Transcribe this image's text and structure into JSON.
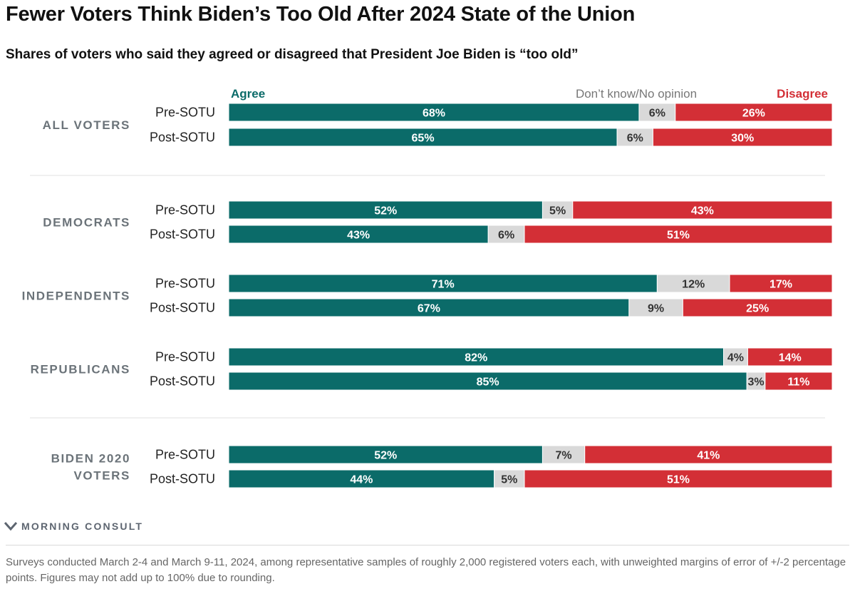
{
  "header": {
    "title": "Fewer Voters Think Biden’s Too Old After 2024 State of the Union",
    "subtitle": "Shares of voters who said they agreed or disagreed that President Joe Biden is “too old”"
  },
  "chart_data": {
    "type": "bar",
    "orientation": "horizontal-stacked-100",
    "legend_placement": "top",
    "series": [
      {
        "name": "Agree",
        "color": "#0b6b69"
      },
      {
        "name": "Don’t know/No opinion",
        "color": "#d9d9d9"
      },
      {
        "name": "Disagree",
        "color": "#d32f36"
      }
    ],
    "groups": [
      {
        "label": [
          "ALL VOTERS"
        ],
        "rows": [
          {
            "label": "Pre-SOTU",
            "values": [
              68,
              6,
              26
            ]
          },
          {
            "label": "Post-SOTU",
            "values": [
              65,
              6,
              30
            ]
          }
        ]
      },
      {
        "label": [
          "DEMOCRATS"
        ],
        "rows": [
          {
            "label": "Pre-SOTU",
            "values": [
              52,
              5,
              43
            ]
          },
          {
            "label": "Post-SOTU",
            "values": [
              43,
              6,
              51
            ]
          }
        ]
      },
      {
        "label": [
          "INDEPENDENTS"
        ],
        "rows": [
          {
            "label": "Pre-SOTU",
            "values": [
              71,
              12,
              17
            ]
          },
          {
            "label": "Post-SOTU",
            "values": [
              67,
              9,
              25
            ]
          }
        ]
      },
      {
        "label": [
          "REPUBLICANS"
        ],
        "rows": [
          {
            "label": "Pre-SOTU",
            "values": [
              82,
              4,
              14
            ]
          },
          {
            "label": "Post-SOTU",
            "values": [
              85,
              3,
              11
            ]
          }
        ]
      },
      {
        "label": [
          "BIDEN 2020",
          "VOTERS"
        ],
        "rows": [
          {
            "label": "Pre-SOTU",
            "values": [
              52,
              7,
              41
            ]
          },
          {
            "label": "Post-SOTU",
            "values": [
              44,
              5,
              51
            ]
          }
        ]
      }
    ]
  },
  "brand": {
    "name": "MORNING CONSULT",
    "logo_icon": "morning-consult-chevron-icon",
    "color": "#5d6570"
  },
  "footnote": "Surveys conducted March 2-4 and March 9-11, 2024, among representative samples of roughly 2,000 registered voters each, with unweighted margins of error of +/-2 percentage points. Figures may not add up to 100% due to rounding."
}
